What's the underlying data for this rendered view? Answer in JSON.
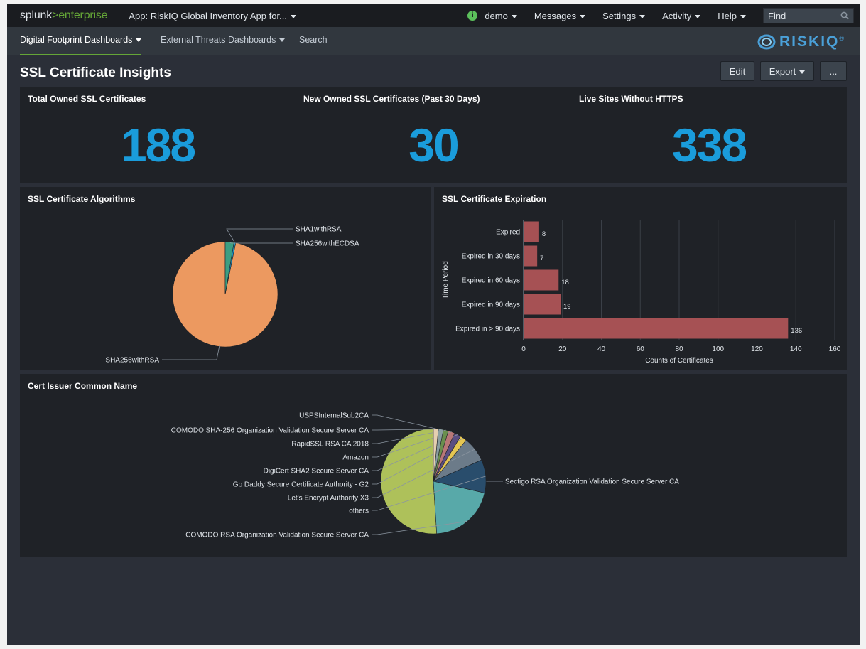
{
  "topbar": {
    "logo_main": "splunk",
    "logo_gt": ">",
    "logo_suffix": "enterprise",
    "app_label": "App: RiskIQ Global Inventory App for...",
    "user_badge": "i",
    "user": "demo",
    "messages": "Messages",
    "settings": "Settings",
    "activity": "Activity",
    "help": "Help",
    "find_placeholder": "Find"
  },
  "nav": {
    "items": [
      {
        "label": "Digital Footprint Dashboards",
        "caret": true
      },
      {
        "label": "External Threats Dashboards",
        "caret": true
      },
      {
        "label": "Search",
        "caret": false
      }
    ],
    "brand": "RISKIQ",
    "brand_mark": "®"
  },
  "page": {
    "title": "SSL Certificate Insights",
    "edit": "Edit",
    "export": "Export",
    "more": "..."
  },
  "colors": {
    "accent_green": "#65a637",
    "single_value": "#1a9cdb",
    "bar": "#a65154"
  },
  "kpis": [
    {
      "title": "Total Owned SSL Certificates",
      "value": "188"
    },
    {
      "title": "New Owned SSL Certificates (Past 30 Days)",
      "value": "30"
    },
    {
      "title": "Live Sites Without HTTPS",
      "value": "338"
    }
  ],
  "panels": {
    "algorithms": "SSL Certificate Algorithms",
    "expiration": "SSL Certificate Expiration",
    "issuer": "Cert Issuer Common Name"
  },
  "chart_data": [
    {
      "type": "pie",
      "title": "SSL Certificate Algorithms",
      "slices": [
        {
          "label": "SHA256withRSA",
          "value": 182,
          "color": "#ec9960"
        },
        {
          "label": "SHA1withRSA",
          "value": 1,
          "color": "#1e93c6"
        },
        {
          "label": "SHA256withECDSA",
          "value": 5,
          "color": "#3c9e82"
        }
      ]
    },
    {
      "type": "bar",
      "orientation": "horizontal",
      "title": "SSL Certificate Expiration",
      "categories": [
        "Expired",
        "Expired in 30 days",
        "Expired in 60 days",
        "Expired in 90 days",
        "Expired in > 90 days"
      ],
      "values": [
        8,
        7,
        18,
        19,
        136
      ],
      "xlabel": "Counts of Certificates",
      "ylabel": "Time Period",
      "xlim": [
        0,
        160
      ],
      "xticks": [
        0,
        20,
        40,
        60,
        80,
        100,
        120,
        140,
        160
      ],
      "grid": true,
      "legend": "none"
    },
    {
      "type": "pie",
      "title": "Cert Issuer Common Name",
      "slices": [
        {
          "label": "Sectigo RSA Organization Validation Secure Server CA",
          "value": 50,
          "color": "#aec15a"
        },
        {
          "label": "COMODO RSA Organization Validation Secure Server CA",
          "value": 20,
          "color": "#58a9a9"
        },
        {
          "label": "others",
          "value": 10,
          "color": "#294d6c"
        },
        {
          "label": "Let's Encrypt Authority X3",
          "value": 7.5,
          "color": "#6c7b89"
        },
        {
          "label": "Go Daddy Secure Certificate Authority - G2",
          "value": 2,
          "color": "#e5c652"
        },
        {
          "label": "DigiCert SHA2 Secure Server CA",
          "value": 2,
          "color": "#5a4e82"
        },
        {
          "label": "Amazon",
          "value": 2,
          "color": "#b87777"
        },
        {
          "label": "RapidSSL RSA CA 2018",
          "value": 1.5,
          "color": "#6a8f4e"
        },
        {
          "label": "COMODO SHA-256 Organization Validation Secure Server CA",
          "value": 1.5,
          "color": "#8a9ea0"
        },
        {
          "label": "USPSInternalSub2CA",
          "value": 1.5,
          "color": "#e4cfb0"
        }
      ]
    }
  ]
}
